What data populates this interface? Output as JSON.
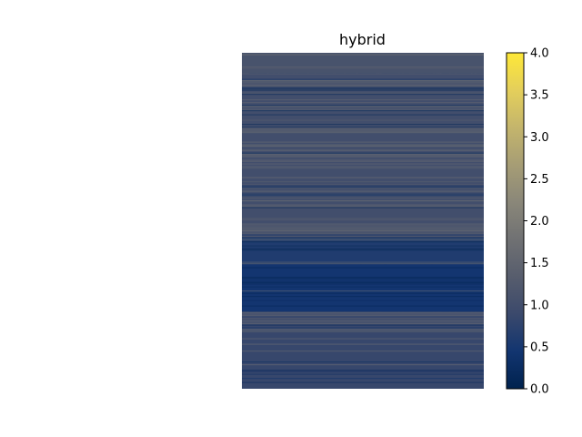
{
  "chart_data": {
    "type": "heatmap",
    "title": "hybrid",
    "xlabel": "",
    "ylabel": "",
    "axes_visible": false,
    "colormap": "cividis",
    "colormap_stops": [
      "#00224e",
      "#123570",
      "#3b496c",
      "#575d6d",
      "#707173",
      "#8a8779",
      "#a69d75",
      "#c4b56c",
      "#e4cf5b",
      "#fee838"
    ],
    "colorbar": {
      "range": [
        0.0,
        4.0
      ],
      "ticks": [
        0.0,
        0.5,
        1.0,
        1.5,
        2.0,
        2.5,
        3.0,
        3.5,
        4.0
      ],
      "tick_labels": [
        "0.0",
        "0.5",
        "1.0",
        "1.5",
        "2.0",
        "2.5",
        "3.0",
        "3.5",
        "4.0"
      ]
    },
    "value_range_observed": [
      0.0,
      2.3
    ],
    "row_bands": [
      {
        "rows": "top ~6%",
        "typical_value": 1.1
      },
      {
        "rows": "~6%–55%",
        "typical_value": 1.0
      },
      {
        "rows": "~55%–63%",
        "typical_value": 0.6
      },
      {
        "rows": "~63%–77%",
        "typical_value": 0.45
      },
      {
        "rows": "~77%–100%",
        "typical_value": 0.85
      }
    ],
    "column_pattern": "leftmost columns brighter (~1.8); scattered vertical streaks of higher values (~1.3–1.8)"
  }
}
